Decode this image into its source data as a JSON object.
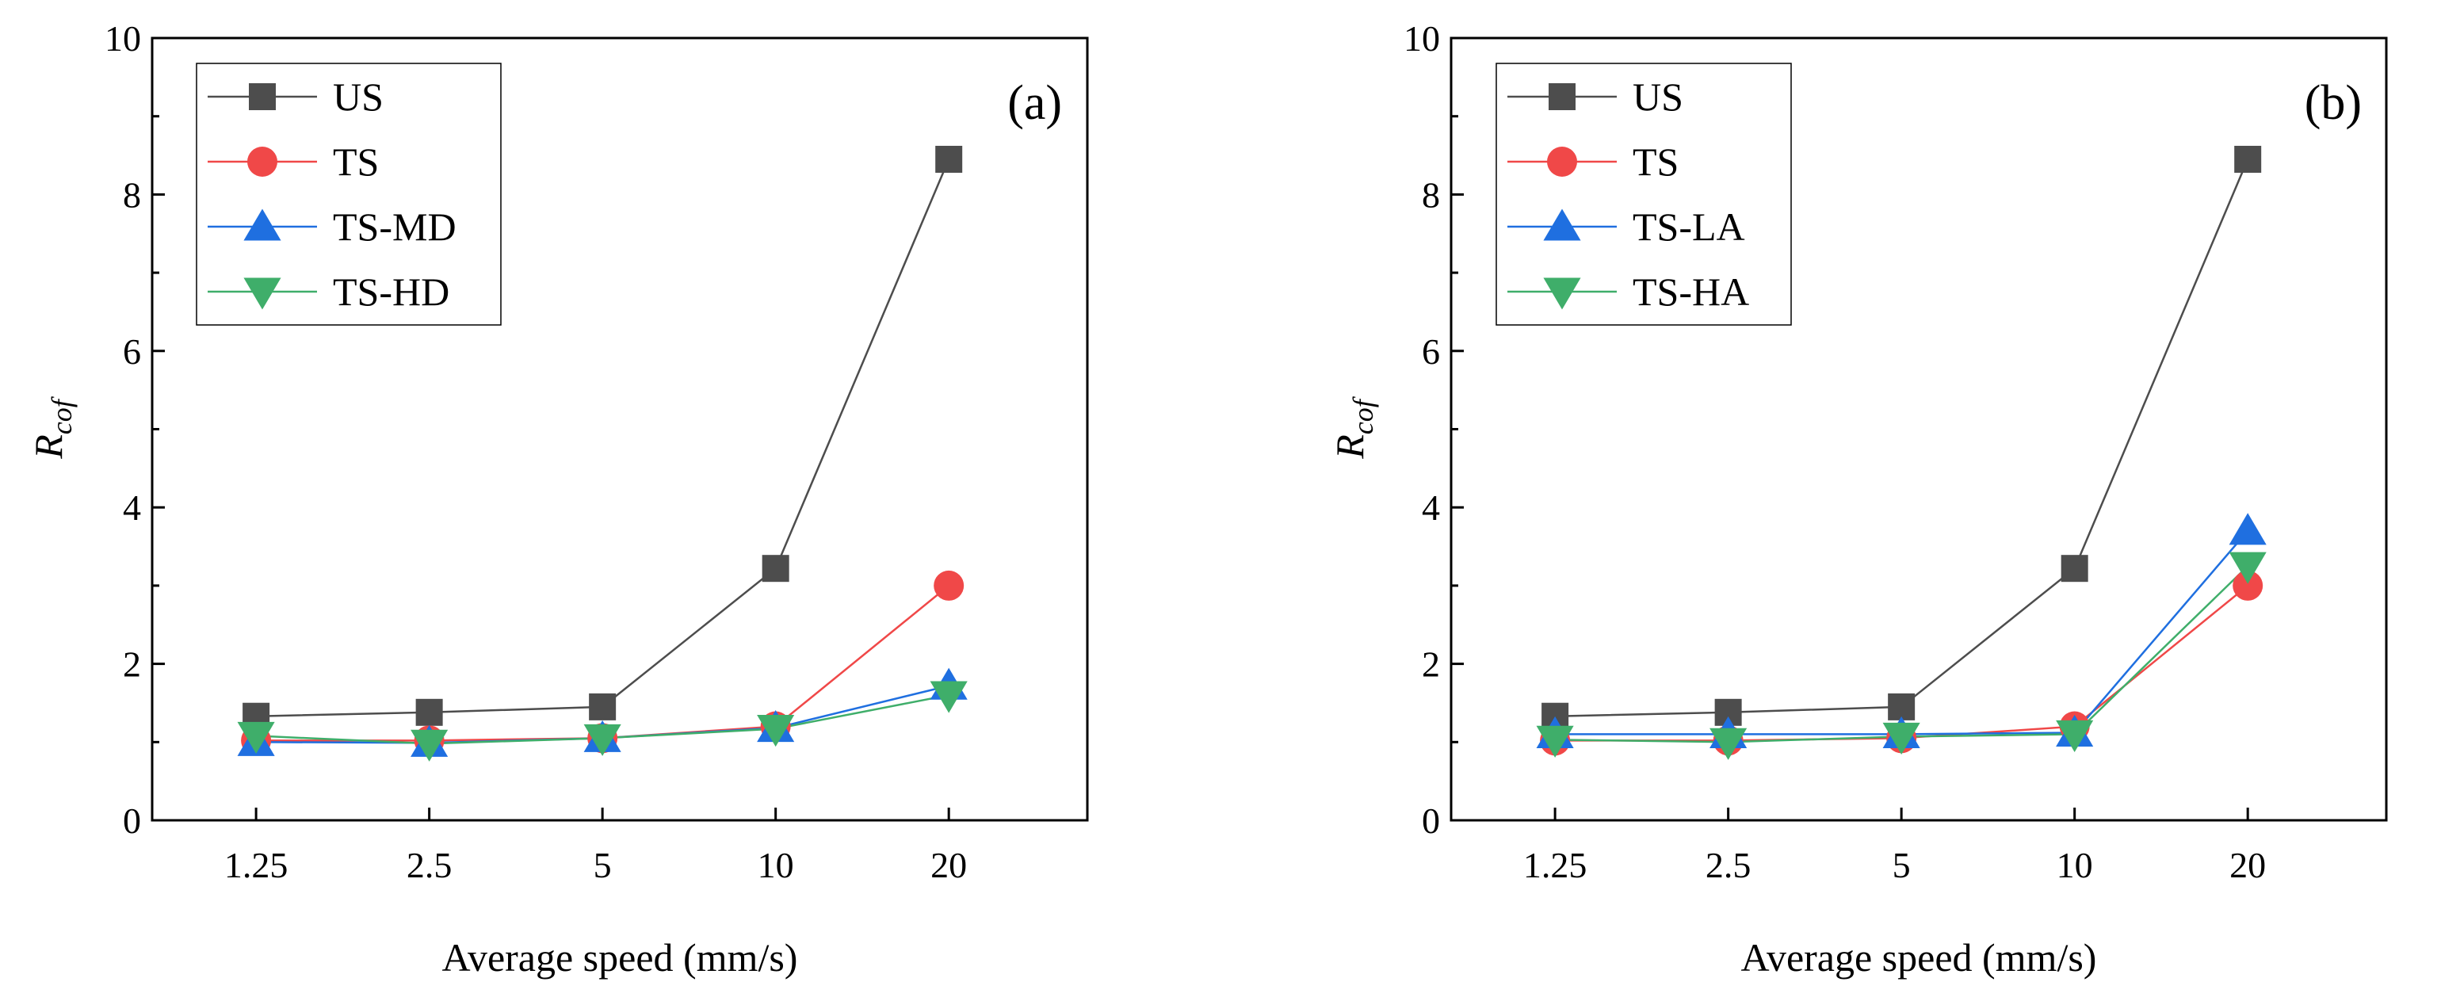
{
  "chart_data": [
    {
      "type": "line",
      "panel_label": "(a)",
      "xlabel": "Average speed (mm/s)",
      "ylabel": {
        "main": "R",
        "subscript": "cof"
      },
      "categories": [
        "1.25",
        "2.5",
        "5",
        "10",
        "20"
      ],
      "ylim": [
        0,
        10
      ],
      "yticks": [
        "0",
        "2",
        "4",
        "6",
        "8",
        "10"
      ],
      "legend_position": "top-left",
      "grid": false,
      "series": [
        {
          "name": "US",
          "color": "#4d4d4d",
          "marker": "square",
          "values": [
            1.33,
            1.38,
            1.45,
            3.22,
            8.45
          ]
        },
        {
          "name": "TS",
          "color": "#f04848",
          "marker": "circle",
          "values": [
            1.02,
            1.02,
            1.05,
            1.2,
            3.0
          ]
        },
        {
          "name": "TS-MD",
          "color": "#1f6fe0",
          "marker": "triangle-up",
          "values": [
            1.0,
            0.99,
            1.05,
            1.18,
            1.72
          ]
        },
        {
          "name": "TS-HD",
          "color": "#3fae6a",
          "marker": "triangle-down",
          "values": [
            1.08,
            0.98,
            1.05,
            1.17,
            1.6
          ]
        }
      ]
    },
    {
      "type": "line",
      "panel_label": "(b)",
      "xlabel": "Average speed (mm/s)",
      "ylabel": {
        "main": "R",
        "subscript": "cof"
      },
      "categories": [
        "1.25",
        "2.5",
        "5",
        "10",
        "20"
      ],
      "ylim": [
        0,
        10
      ],
      "yticks": [
        "0",
        "2",
        "4",
        "6",
        "8",
        "10"
      ],
      "legend_position": "top-left",
      "grid": false,
      "series": [
        {
          "name": "US",
          "color": "#4d4d4d",
          "marker": "square",
          "values": [
            1.33,
            1.38,
            1.45,
            3.22,
            8.45
          ]
        },
        {
          "name": "TS",
          "color": "#f04848",
          "marker": "circle",
          "values": [
            1.02,
            1.02,
            1.05,
            1.2,
            3.0
          ]
        },
        {
          "name": "TS-LA",
          "color": "#1f6fe0",
          "marker": "triangle-up",
          "values": [
            1.1,
            1.1,
            1.1,
            1.12,
            3.7
          ]
        },
        {
          "name": "TS-HA",
          "color": "#3fae6a",
          "marker": "triangle-down",
          "values": [
            1.03,
            1.0,
            1.07,
            1.1,
            3.25
          ]
        }
      ]
    }
  ]
}
